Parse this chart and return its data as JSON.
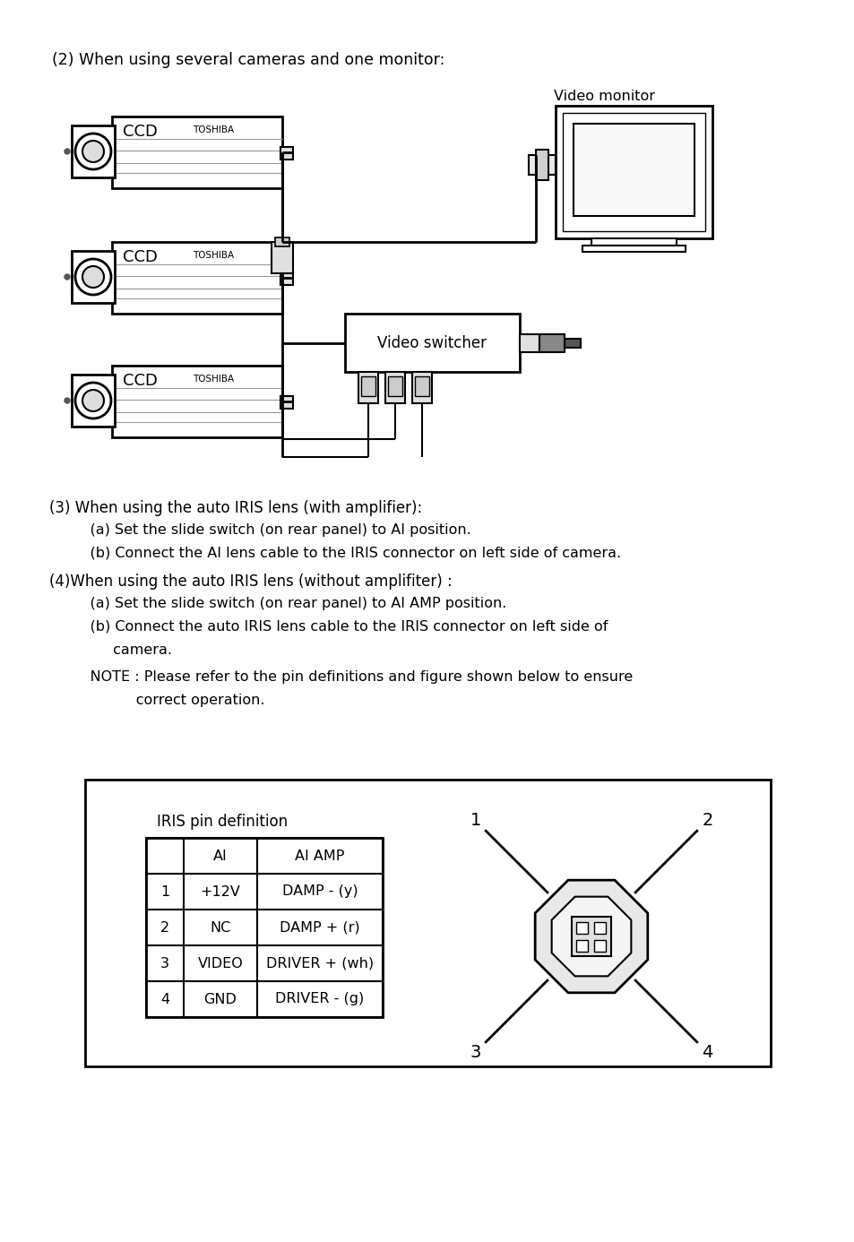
{
  "bg_color": "#ffffff",
  "title_text": "(2) When using several cameras and one monitor:",
  "section3_text": "(3) When using the auto IRIS lens (with amplifier):",
  "section3a": "    (a) Set the slide switch (on rear panel) to AI position.",
  "section3b": "    (b) Connect the AI lens cable to the IRIS connector on left side of camera.",
  "section4_text": "(4)When using the auto IRIS lens (without amplifiter) :",
  "section4a": "    (a) Set the slide switch (on rear panel) to AI AMP position.",
  "section4b_line1": "    (b) Connect the auto IRIS lens cable to the IRIS connector on left side of",
  "section4b_line2": "         camera.",
  "note_line1": "    NOTE : Please refer to the pin definitions and figure shown below to ensure",
  "note_line2": "              correct operation.",
  "iris_title": "IRIS pin definition",
  "table_headers": [
    "",
    "AI",
    "AI AMP"
  ],
  "table_rows": [
    [
      "1",
      "+12V",
      "DAMP - (y)"
    ],
    [
      "2",
      "NC",
      "DAMP + (r)"
    ],
    [
      "3",
      "VIDEO",
      "DRIVER + (wh)"
    ],
    [
      "4",
      "GND",
      "DRIVER - (g)"
    ]
  ],
  "video_monitor_label": "Video monitor",
  "video_switcher_label": "Video switcher"
}
